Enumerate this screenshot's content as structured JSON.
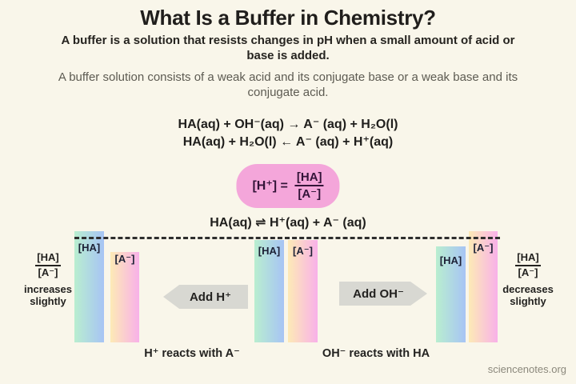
{
  "header": {
    "title": "What Is a Buffer in Chemistry?",
    "definition": "A buffer is a solution that resists changes in pH when a small amount of acid or base is added.",
    "composition": "A buffer solution consists of a weak acid and its conjugate base or a weak base and its conjugate acid."
  },
  "equations": {
    "line1": "HA(aq) + OH⁻(aq) → A⁻ (aq) + H₂O(l)",
    "line2": "HA(aq) + H₂O(l) ← A⁻ (aq) + H⁺(aq)"
  },
  "formula_box": {
    "lhs": "[H⁺] =",
    "numerator": "[HA]",
    "denominator": "[A⁻]"
  },
  "equilibrium_equation": "HA(aq) ⇌ H⁺(aq) + A⁻ (aq)",
  "diagram": {
    "bars": [
      {
        "label": "[HA]"
      },
      {
        "label": "[A⁻]"
      },
      {
        "label": "[HA]"
      },
      {
        "label": "[A⁻]"
      },
      {
        "label": "[HA]"
      },
      {
        "label": "[A⁻]"
      }
    ],
    "left_note": {
      "fraction_numerator": "[HA]",
      "fraction_denominator": "[A⁻]",
      "caption": "increases slightly"
    },
    "right_note": {
      "fraction_numerator": "[HA]",
      "fraction_denominator": "[A⁻]",
      "caption": "decreases slightly"
    },
    "arrow_left_label": "Add H⁺",
    "arrow_right_label": "Add OH⁻",
    "caption_left": "H⁺ reacts with A⁻",
    "caption_right": "OH⁻ reacts with HA"
  },
  "footer": {
    "credit": "sciencenotes.org"
  },
  "colors": {
    "background": "#f9f6ea",
    "formula_box_pink": "#f4a6da",
    "bar_ha_gradient_start": "#b9eecf",
    "bar_ha_gradient_end": "#a7c4f5",
    "bar_a_gradient_start": "#fdeab6",
    "bar_a_gradient_end": "#f8b1e9",
    "arrow_gray": "#d8d8d2",
    "text_dark": "#201e1c",
    "text_gray": "#5d5b52"
  }
}
